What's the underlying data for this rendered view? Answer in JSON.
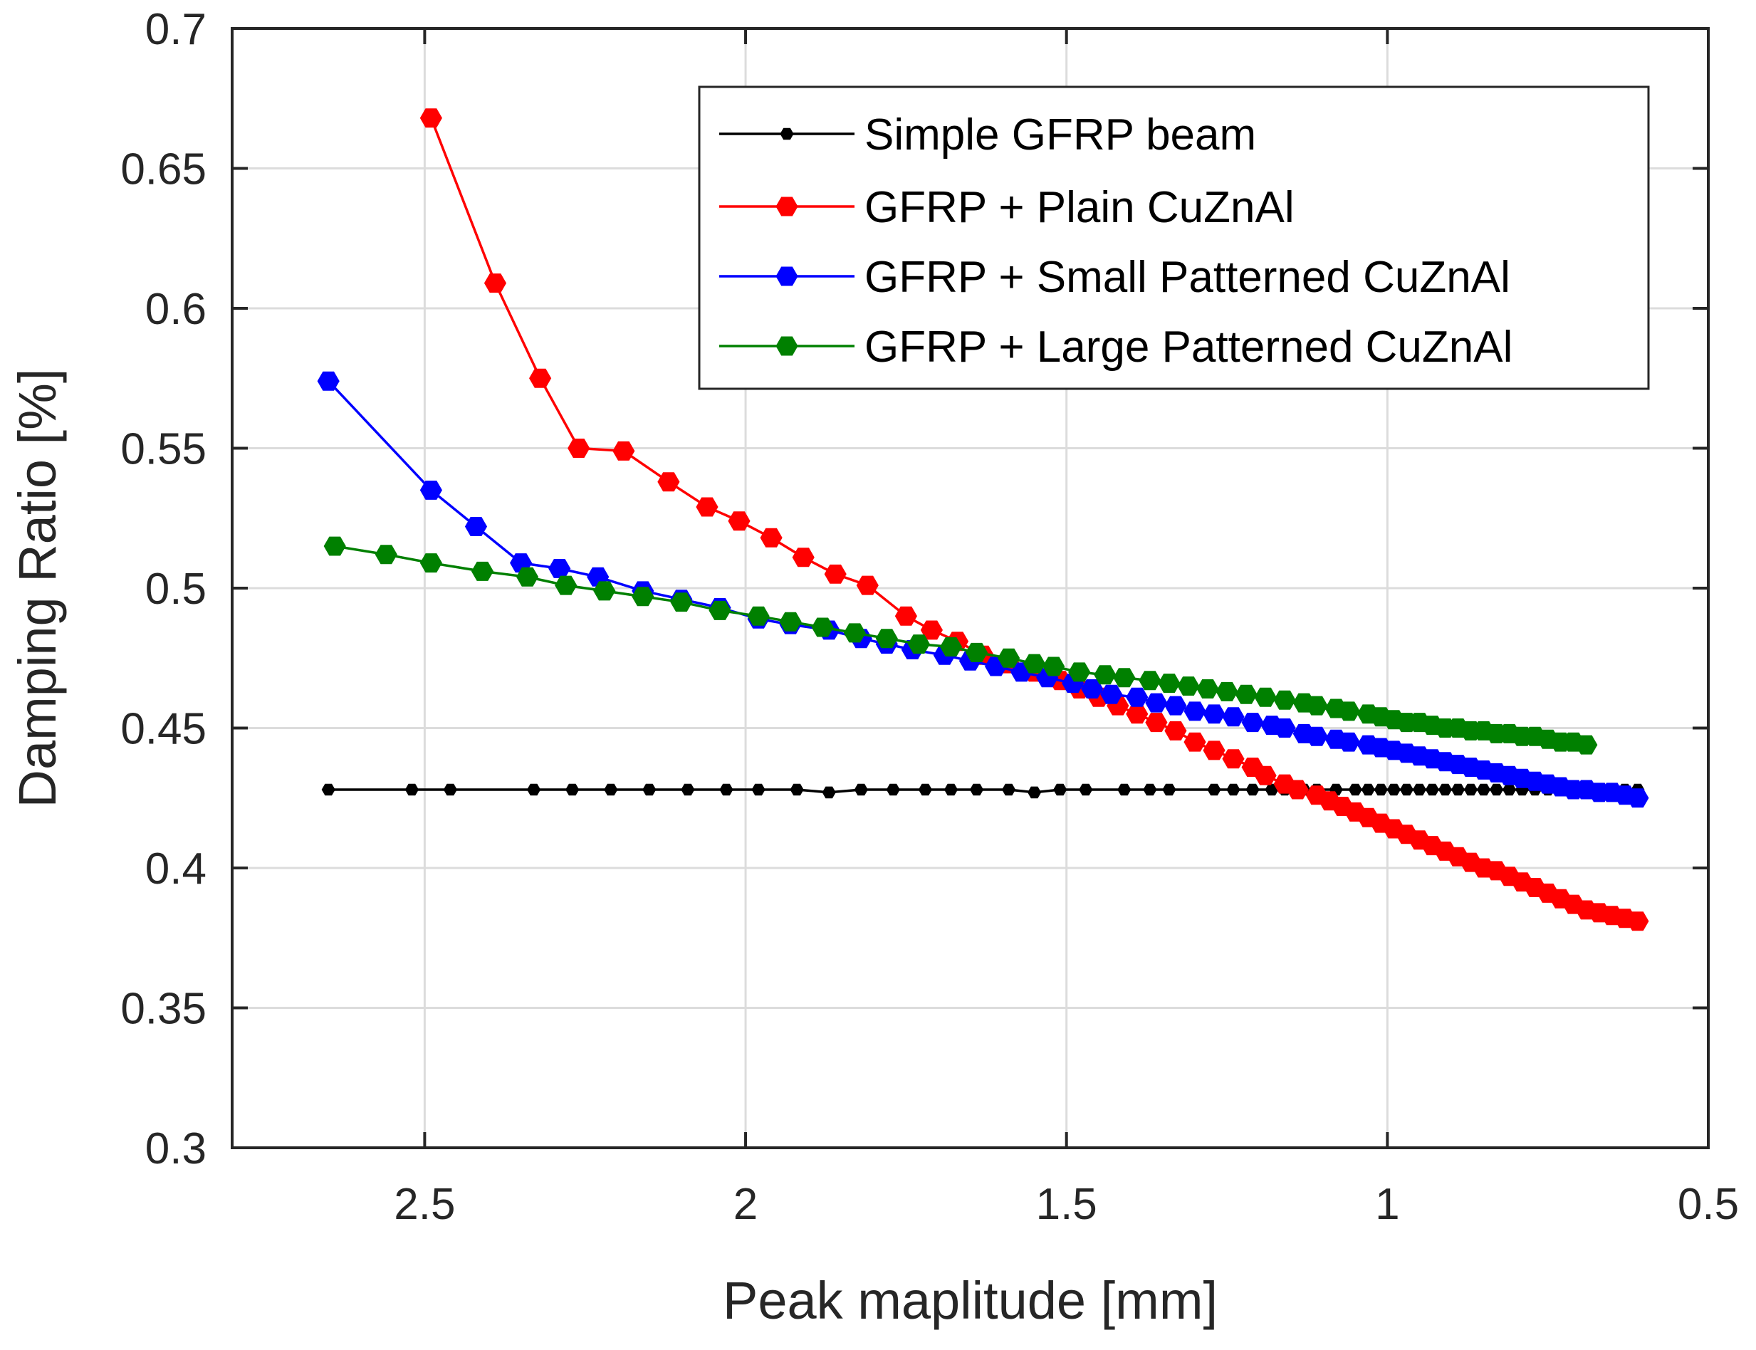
{
  "chart_data": {
    "type": "line",
    "title": "",
    "xlabel": "Peak maplitude [mm]",
    "ylabel": "Damping Ratio [%]",
    "xlim": [
      0.5,
      2.8
    ],
    "ylim": [
      0.3,
      0.7
    ],
    "x_reversed": true,
    "grid": true,
    "legend_position": "top-right",
    "xticks": [
      2.5,
      2,
      1.5,
      1,
      0.5
    ],
    "xtick_labels": [
      "2.5",
      "2",
      "1.5",
      "1",
      "0.5"
    ],
    "yticks": [
      0.3,
      0.35,
      0.4,
      0.45,
      0.5,
      0.55,
      0.6,
      0.65,
      0.7
    ],
    "ytick_labels": [
      "0.3",
      "0.35",
      "0.4",
      "0.45",
      "0.5",
      "0.55",
      "0.6",
      "0.65",
      "0.7"
    ],
    "series": [
      {
        "name": "Simple GFRP beam",
        "color": "#000000",
        "marker": "small-hexagon",
        "x": [
          2.65,
          2.52,
          2.46,
          2.33,
          2.27,
          2.21,
          2.15,
          2.09,
          2.03,
          1.98,
          1.92,
          1.87,
          1.82,
          1.77,
          1.72,
          1.68,
          1.64,
          1.59,
          1.55,
          1.51,
          1.47,
          1.41,
          1.37,
          1.34,
          1.27,
          1.24,
          1.21,
          1.18,
          1.16,
          1.13,
          1.11,
          1.08,
          1.05,
          1.03,
          1.01,
          0.99,
          0.97,
          0.95,
          0.93,
          0.91,
          0.89,
          0.87,
          0.85,
          0.83,
          0.81,
          0.79,
          0.77,
          0.75,
          0.73,
          0.71,
          0.69,
          0.67,
          0.65,
          0.63,
          0.61
        ],
        "values": [
          0.428,
          0.428,
          0.428,
          0.428,
          0.428,
          0.428,
          0.428,
          0.428,
          0.428,
          0.428,
          0.428,
          0.427,
          0.428,
          0.428,
          0.428,
          0.428,
          0.428,
          0.428,
          0.427,
          0.428,
          0.428,
          0.428,
          0.428,
          0.428,
          0.428,
          0.428,
          0.428,
          0.428,
          0.428,
          0.428,
          0.428,
          0.428,
          0.428,
          0.428,
          0.428,
          0.428,
          0.428,
          0.428,
          0.428,
          0.428,
          0.428,
          0.428,
          0.428,
          0.428,
          0.428,
          0.428,
          0.428,
          0.428,
          0.428,
          0.428,
          0.428,
          0.428,
          0.428,
          0.428,
          0.428
        ]
      },
      {
        "name": "GFRP + Plain CuZnAl",
        "color": "#ff0000",
        "marker": "hexagon",
        "x": [
          2.49,
          2.39,
          2.32,
          2.26,
          2.19,
          2.12,
          2.06,
          2.01,
          1.96,
          1.91,
          1.86,
          1.81,
          1.75,
          1.71,
          1.67,
          1.63,
          1.59,
          1.55,
          1.51,
          1.48,
          1.45,
          1.42,
          1.39,
          1.36,
          1.33,
          1.3,
          1.27,
          1.24,
          1.21,
          1.19,
          1.16,
          1.14,
          1.11,
          1.09,
          1.07,
          1.05,
          1.03,
          1.01,
          0.99,
          0.97,
          0.95,
          0.93,
          0.91,
          0.89,
          0.87,
          0.85,
          0.83,
          0.81,
          0.79,
          0.77,
          0.75,
          0.73,
          0.71,
          0.69,
          0.67,
          0.65,
          0.63,
          0.61
        ],
        "values": [
          0.668,
          0.609,
          0.575,
          0.55,
          0.549,
          0.538,
          0.529,
          0.524,
          0.518,
          0.511,
          0.505,
          0.501,
          0.49,
          0.485,
          0.481,
          0.476,
          0.473,
          0.47,
          0.467,
          0.464,
          0.461,
          0.458,
          0.455,
          0.452,
          0.449,
          0.445,
          0.442,
          0.439,
          0.436,
          0.433,
          0.43,
          0.428,
          0.426,
          0.424,
          0.422,
          0.42,
          0.418,
          0.416,
          0.414,
          0.412,
          0.41,
          0.408,
          0.406,
          0.404,
          0.402,
          0.4,
          0.399,
          0.397,
          0.395,
          0.393,
          0.391,
          0.389,
          0.387,
          0.385,
          0.384,
          0.383,
          0.382,
          0.381
        ]
      },
      {
        "name": "GFRP + Small Patterned CuZnAl",
        "color": "#0000ff",
        "marker": "hexagon",
        "x": [
          2.65,
          2.49,
          2.42,
          2.35,
          2.29,
          2.23,
          2.16,
          2.1,
          2.04,
          1.98,
          1.93,
          1.87,
          1.82,
          1.78,
          1.74,
          1.69,
          1.65,
          1.61,
          1.57,
          1.53,
          1.49,
          1.46,
          1.43,
          1.39,
          1.36,
          1.33,
          1.3,
          1.27,
          1.24,
          1.21,
          1.18,
          1.16,
          1.13,
          1.11,
          1.08,
          1.06,
          1.03,
          1.01,
          0.99,
          0.97,
          0.95,
          0.93,
          0.91,
          0.89,
          0.87,
          0.85,
          0.83,
          0.81,
          0.79,
          0.77,
          0.75,
          0.73,
          0.71,
          0.69,
          0.67,
          0.65,
          0.63,
          0.61
        ],
        "values": [
          0.574,
          0.535,
          0.522,
          0.509,
          0.507,
          0.504,
          0.499,
          0.496,
          0.493,
          0.489,
          0.487,
          0.485,
          0.482,
          0.48,
          0.478,
          0.476,
          0.474,
          0.472,
          0.47,
          0.468,
          0.466,
          0.464,
          0.462,
          0.461,
          0.459,
          0.458,
          0.456,
          0.455,
          0.454,
          0.452,
          0.451,
          0.45,
          0.448,
          0.447,
          0.446,
          0.445,
          0.444,
          0.443,
          0.442,
          0.441,
          0.44,
          0.439,
          0.438,
          0.437,
          0.436,
          0.435,
          0.434,
          0.433,
          0.432,
          0.431,
          0.43,
          0.429,
          0.428,
          0.428,
          0.427,
          0.427,
          0.426,
          0.425
        ]
      },
      {
        "name": "GFRP + Large Patterned CuZnAl",
        "color": "#008000",
        "marker": "hexagon",
        "x": [
          2.64,
          2.56,
          2.49,
          2.41,
          2.34,
          2.28,
          2.22,
          2.16,
          2.1,
          2.04,
          1.98,
          1.93,
          1.88,
          1.83,
          1.78,
          1.73,
          1.68,
          1.64,
          1.59,
          1.55,
          1.52,
          1.48,
          1.44,
          1.41,
          1.37,
          1.34,
          1.31,
          1.28,
          1.25,
          1.22,
          1.19,
          1.16,
          1.13,
          1.11,
          1.08,
          1.06,
          1.03,
          1.01,
          0.99,
          0.97,
          0.95,
          0.93,
          0.91,
          0.89,
          0.87,
          0.85,
          0.83,
          0.81,
          0.79,
          0.77,
          0.75,
          0.73,
          0.71,
          0.69
        ],
        "values": [
          0.515,
          0.512,
          0.509,
          0.506,
          0.504,
          0.501,
          0.499,
          0.497,
          0.495,
          0.492,
          0.49,
          0.488,
          0.486,
          0.484,
          0.482,
          0.48,
          0.479,
          0.477,
          0.475,
          0.473,
          0.472,
          0.47,
          0.469,
          0.468,
          0.467,
          0.466,
          0.465,
          0.464,
          0.463,
          0.462,
          0.461,
          0.46,
          0.459,
          0.458,
          0.457,
          0.456,
          0.455,
          0.454,
          0.453,
          0.452,
          0.452,
          0.451,
          0.45,
          0.45,
          0.449,
          0.449,
          0.448,
          0.448,
          0.447,
          0.447,
          0.446,
          0.445,
          0.445,
          0.444
        ]
      }
    ]
  }
}
